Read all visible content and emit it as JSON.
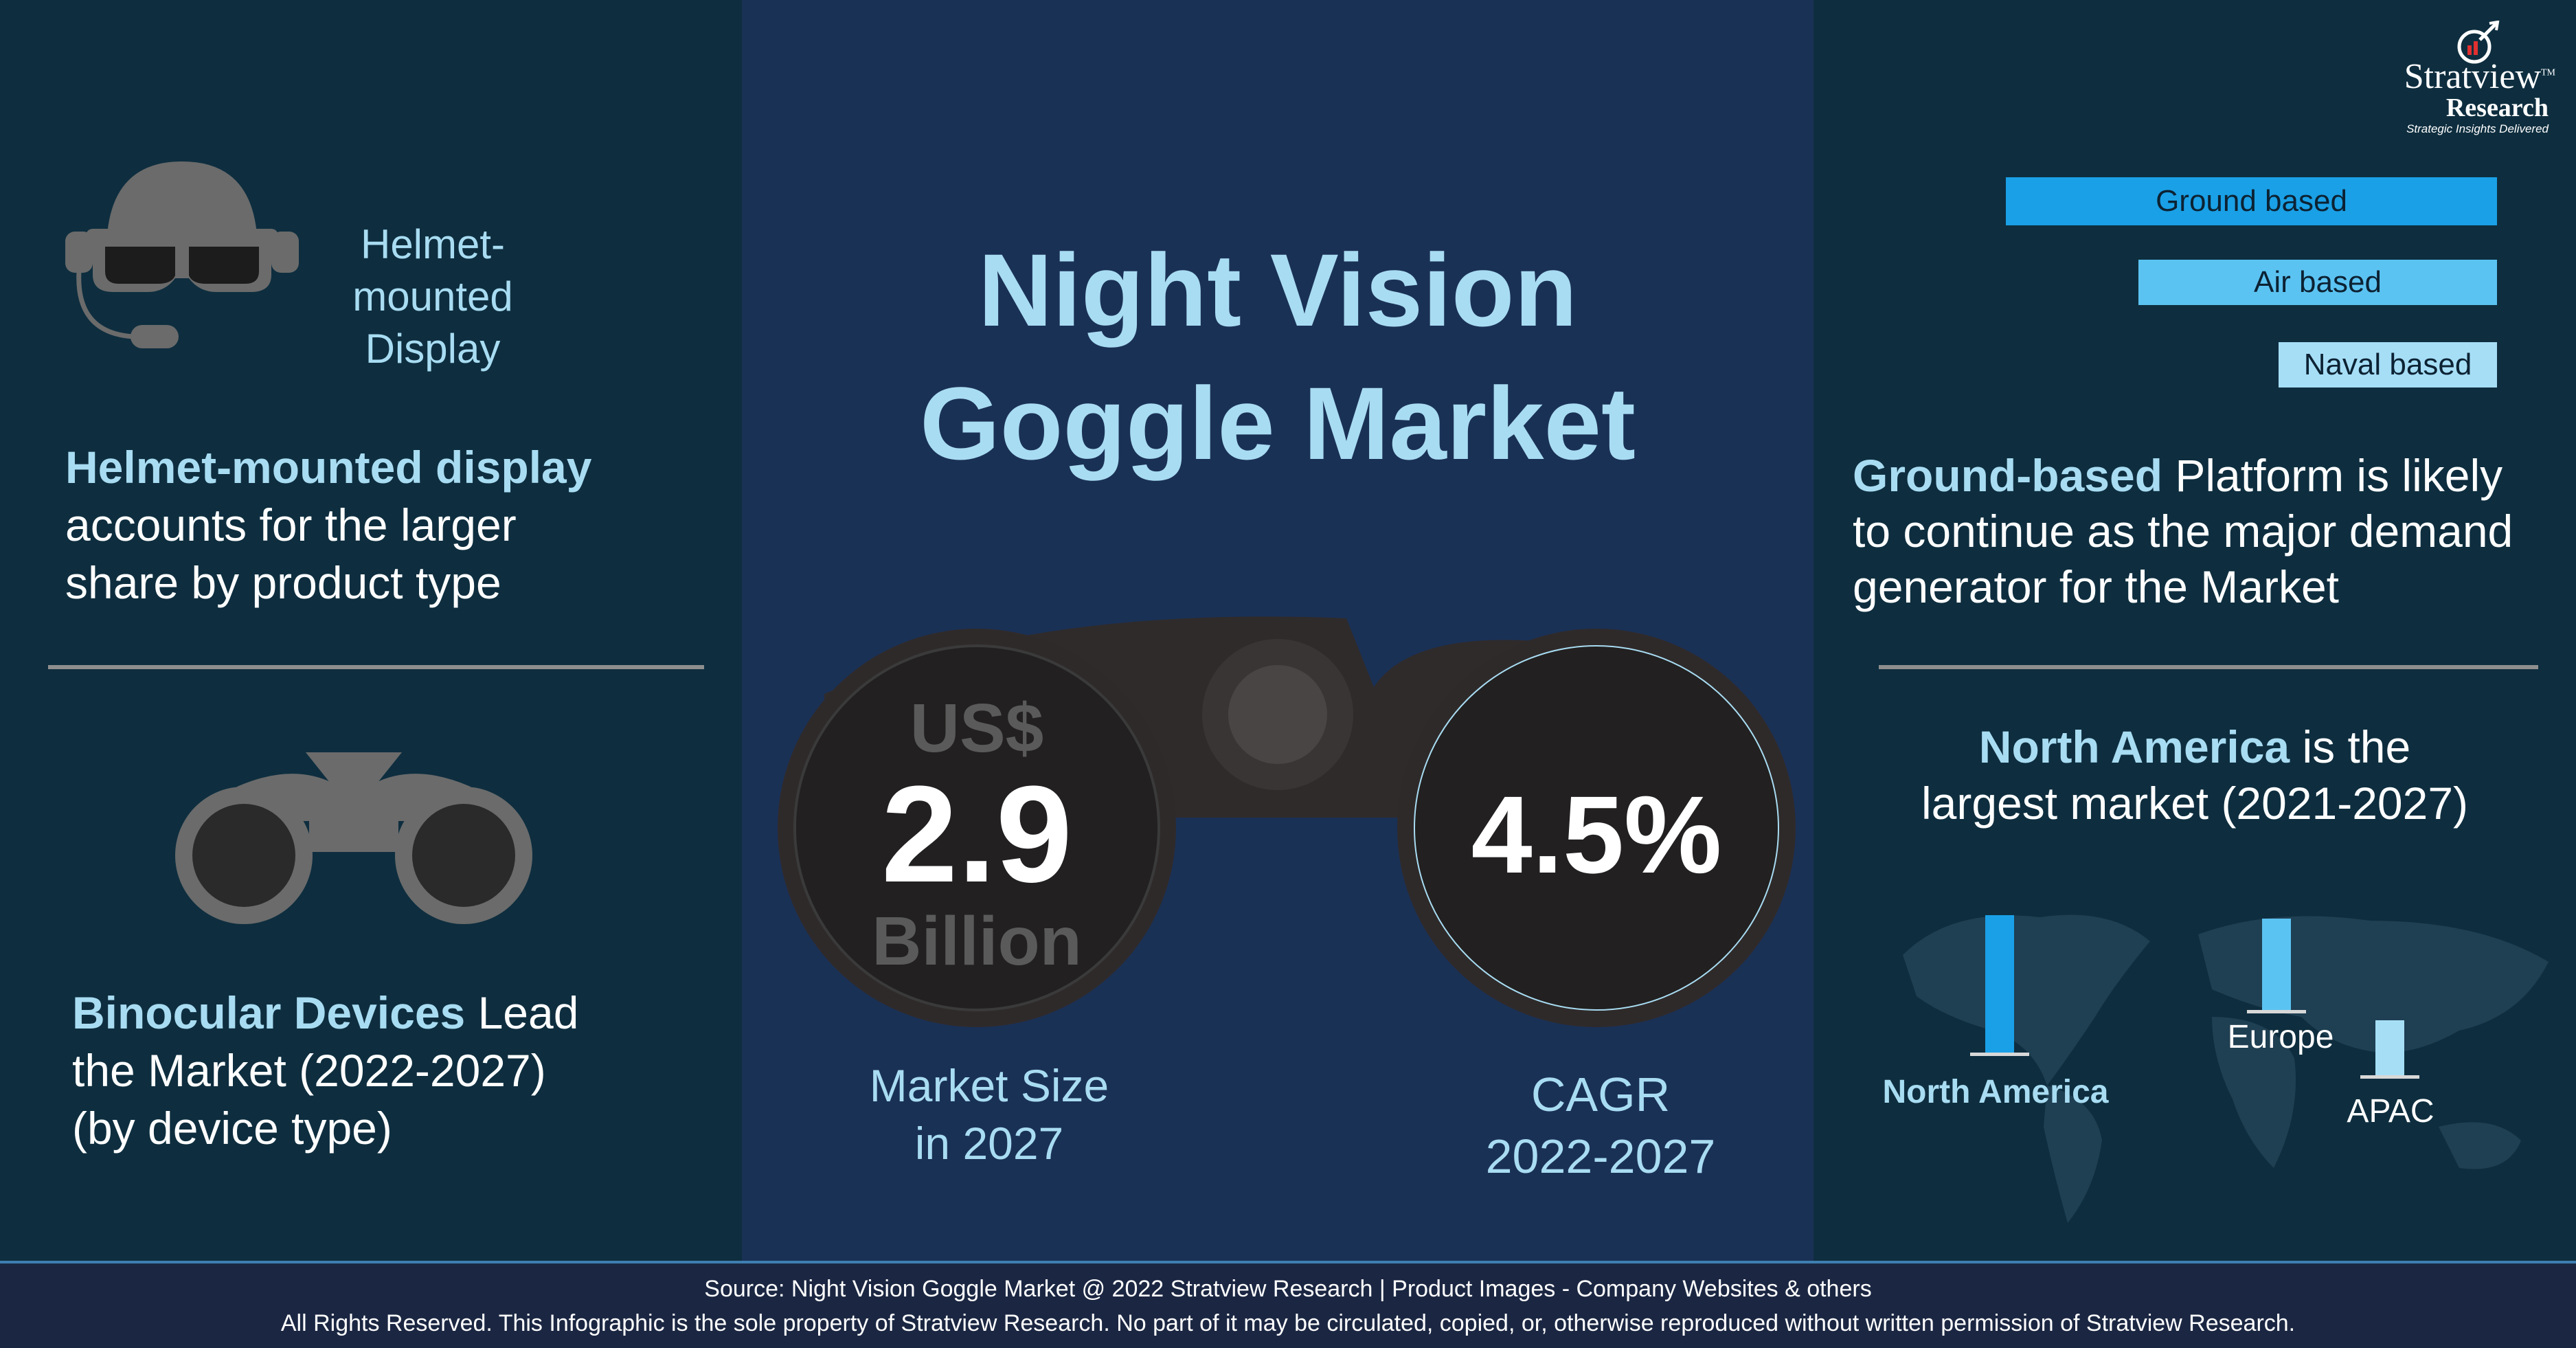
{
  "left": {
    "hmd_icon_label": [
      "Helmet-mounted",
      "Display"
    ],
    "hmd_highlight": "Helmet-mounted display",
    "hmd_text_lines": [
      "accounts for the larger",
      "share by product type"
    ],
    "binocular_highlight": "Binocular Devices",
    "binocular_text_1": "Lead",
    "binocular_text_lines": [
      "the Market (2022-2027)",
      "(by device type)"
    ]
  },
  "center": {
    "title_lines": [
      "Night Vision",
      "Goggle Market"
    ],
    "market_size_prefix": "US$",
    "market_size_value": "2.9",
    "market_size_unit": "Billion",
    "market_size_caption": [
      "Market Size",
      "in 2027"
    ],
    "cagr_value": "4.5%",
    "cagr_caption": [
      "CAGR",
      "2022-2027"
    ]
  },
  "right": {
    "logo": {
      "name": "Stratview",
      "tm": "TM",
      "sub": "Research",
      "tagline": "Strategic Insights Delivered"
    },
    "platform_highlight": "Ground-based",
    "platform_text_1": "Platform is likely",
    "platform_text_lines": [
      "to continue as the major demand",
      "generator for the Market"
    ],
    "region_highlight": "North America",
    "region_text_1": "is the",
    "region_text_2": "largest market (2021-2027)"
  },
  "chart_data": [
    {
      "type": "bar",
      "orientation": "horizontal",
      "categories": [
        "Ground based",
        "Air based",
        "Naval based"
      ],
      "values": [
        3,
        2,
        1
      ],
      "colors": [
        "#1aa0e6",
        "#5bc3f2",
        "#a6def6"
      ]
    },
    {
      "type": "bar",
      "categories": [
        "North America",
        "Europe",
        "APAC"
      ],
      "values": [
        3,
        2,
        1.2
      ],
      "colors": [
        "#1aa0e6",
        "#5bc3f2",
        "#a6def6"
      ]
    }
  ],
  "footer": {
    "source": "Source: Night Vision Goggle Market @ 2022 Stratview Research | Product Images  - Company Websites & others",
    "rights": "All Rights Reserved. This Infographic is the sole property of Stratview Research. No part of it may be circulated, copied, or, otherwise reproduced without written permission of Stratview Research."
  }
}
